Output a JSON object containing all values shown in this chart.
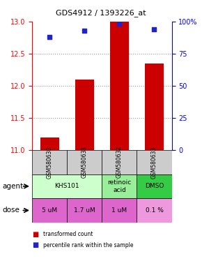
{
  "title": "GDS4912 / 1393226_at",
  "samples": [
    "GSM580630",
    "GSM580631",
    "GSM580632",
    "GSM580633"
  ],
  "bar_values": [
    11.2,
    12.1,
    13.0,
    12.35
  ],
  "dot_values": [
    88,
    93,
    98,
    94
  ],
  "ylim_left": [
    11,
    13
  ],
  "ylim_right": [
    0,
    100
  ],
  "yticks_left": [
    11,
    11.5,
    12,
    12.5,
    13
  ],
  "yticks_right": [
    0,
    25,
    50,
    75,
    100
  ],
  "ytick_labels_right": [
    "0",
    "25",
    "50",
    "75",
    "100%"
  ],
  "bar_color": "#cc0000",
  "dot_color": "#2222cc",
  "grid_lines": [
    11.5,
    12.0,
    12.5
  ],
  "agent_cells": [
    {
      "col": 0,
      "span": 2,
      "label": "KHS101",
      "color": "#ccffcc"
    },
    {
      "col": 2,
      "span": 1,
      "label": "retinoic\nacid",
      "color": "#99ee99"
    },
    {
      "col": 3,
      "span": 1,
      "label": "DMSO",
      "color": "#33cc44"
    }
  ],
  "dose_values": [
    "5 uM",
    "1.7 uM",
    "1 uM",
    "0.1 %"
  ],
  "dose_colors": [
    "#dd66cc",
    "#dd66cc",
    "#dd66cc",
    "#ee99dd"
  ],
  "sample_bg": "#cccccc",
  "legend_bar_label": "transformed count",
  "legend_dot_label": "percentile rank within the sample",
  "bar_width": 0.55
}
